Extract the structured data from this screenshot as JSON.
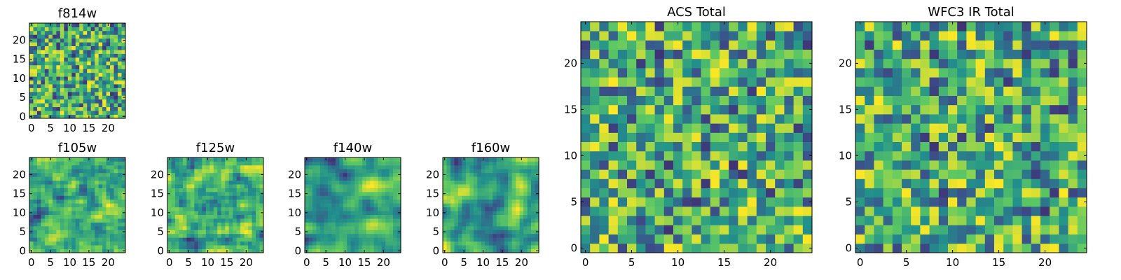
{
  "figure": {
    "colormap": "viridis",
    "colormap_stops": [
      "#440154",
      "#3b528b",
      "#21918c",
      "#5ec962",
      "#fde725"
    ]
  },
  "chart_data": [
    {
      "id": "f814w",
      "type": "heatmap",
      "title": "f814w",
      "xlabel": "",
      "ylabel": "",
      "xlim": [
        -0.5,
        24.5
      ],
      "ylim": [
        -0.5,
        24.5
      ],
      "xticks": [
        0,
        5,
        10,
        15,
        20
      ],
      "yticks": [
        0,
        5,
        10,
        15,
        20
      ],
      "grid_shape": [
        25,
        25
      ],
      "value_range": [
        0,
        1
      ],
      "seed": 814,
      "smooth": 0,
      "description_values": "per-pixel normalized intensity, noisy field"
    },
    {
      "id": "f105w",
      "type": "heatmap",
      "title": "f105w",
      "xlabel": "",
      "ylabel": "",
      "xlim": [
        -0.5,
        24.5
      ],
      "ylim": [
        -0.5,
        24.5
      ],
      "xticks": [
        0,
        5,
        10,
        15,
        20
      ],
      "yticks": [
        0,
        5,
        10,
        15,
        20
      ],
      "grid_shape": [
        25,
        25
      ],
      "value_range": [
        0,
        1
      ],
      "seed": 105,
      "smooth": 1,
      "description_values": "per-pixel normalized intensity, brighter center"
    },
    {
      "id": "f125w",
      "type": "heatmap",
      "title": "f125w",
      "xlabel": "",
      "ylabel": "",
      "xlim": [
        -0.5,
        24.5
      ],
      "ylim": [
        -0.5,
        24.5
      ],
      "xticks": [
        0,
        5,
        10,
        15,
        20
      ],
      "yticks": [
        0,
        5,
        10,
        15,
        20
      ],
      "grid_shape": [
        25,
        25
      ],
      "value_range": [
        0,
        1
      ],
      "seed": 125,
      "smooth": 1,
      "description_values": "per-pixel normalized intensity"
    },
    {
      "id": "f140w",
      "type": "heatmap",
      "title": "f140w",
      "xlabel": "",
      "ylabel": "",
      "xlim": [
        -0.5,
        24.5
      ],
      "ylim": [
        -0.5,
        24.5
      ],
      "xticks": [
        0,
        5,
        10,
        15,
        20
      ],
      "yticks": [
        0,
        5,
        10,
        15,
        20
      ],
      "grid_shape": [
        25,
        25
      ],
      "value_range": [
        0,
        1
      ],
      "seed": 140,
      "smooth": 2,
      "description_values": "per-pixel normalized intensity, smooth bright blobs"
    },
    {
      "id": "f160w",
      "type": "heatmap",
      "title": "f160w",
      "xlabel": "",
      "ylabel": "",
      "xlim": [
        -0.5,
        24.5
      ],
      "ylim": [
        -0.5,
        24.5
      ],
      "xticks": [
        0,
        5,
        10,
        15,
        20
      ],
      "yticks": [
        0,
        5,
        10,
        15,
        20
      ],
      "grid_shape": [
        25,
        25
      ],
      "value_range": [
        0,
        1
      ],
      "seed": 160,
      "smooth": 2,
      "description_values": "per-pixel normalized intensity, bright right edge"
    },
    {
      "id": "acs_total",
      "type": "heatmap",
      "title": "ACS Total",
      "xlabel": "",
      "ylabel": "",
      "xlim": [
        -0.5,
        24.5
      ],
      "ylim": [
        -0.5,
        24.5
      ],
      "xticks": [
        0,
        5,
        10,
        15,
        20
      ],
      "yticks": [
        0,
        5,
        10,
        15,
        20
      ],
      "grid_shape": [
        25,
        25
      ],
      "value_range": [
        0,
        1
      ],
      "seed": 7,
      "smooth": 0,
      "description_values": "per-pixel normalized intensity, blocky"
    },
    {
      "id": "wfc3_ir_total",
      "type": "heatmap",
      "title": "WFC3 IR Total",
      "xlabel": "",
      "ylabel": "",
      "xlim": [
        -0.5,
        24.5
      ],
      "ylim": [
        -0.5,
        24.5
      ],
      "xticks": [
        0,
        5,
        10,
        15,
        20
      ],
      "yticks": [
        0,
        5,
        10,
        15,
        20
      ],
      "grid_shape": [
        25,
        25
      ],
      "value_range": [
        0,
        1
      ],
      "seed": 31,
      "smooth": 0,
      "description_values": "per-pixel normalized intensity, blocky"
    }
  ]
}
